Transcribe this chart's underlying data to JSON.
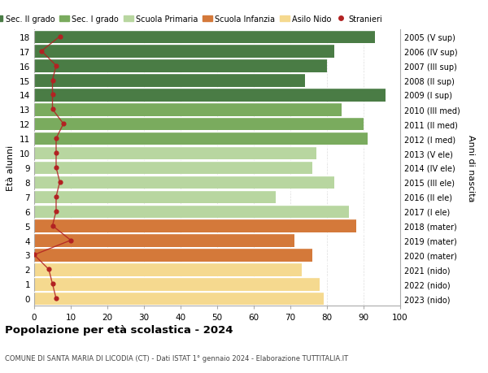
{
  "ages": [
    18,
    17,
    16,
    15,
    14,
    13,
    12,
    11,
    10,
    9,
    8,
    7,
    6,
    5,
    4,
    3,
    2,
    1,
    0
  ],
  "years": [
    "2005 (V sup)",
    "2006 (IV sup)",
    "2007 (III sup)",
    "2008 (II sup)",
    "2009 (I sup)",
    "2010 (III med)",
    "2011 (II med)",
    "2012 (I med)",
    "2013 (V ele)",
    "2014 (IV ele)",
    "2015 (III ele)",
    "2016 (II ele)",
    "2017 (I ele)",
    "2018 (mater)",
    "2019 (mater)",
    "2020 (mater)",
    "2021 (nido)",
    "2022 (nido)",
    "2023 (nido)"
  ],
  "values": [
    93,
    82,
    80,
    74,
    96,
    84,
    90,
    91,
    77,
    76,
    82,
    66,
    86,
    88,
    71,
    76,
    73,
    78,
    79
  ],
  "stranieri": [
    7,
    2,
    6,
    5,
    5,
    5,
    8,
    6,
    6,
    6,
    7,
    6,
    6,
    5,
    10,
    0,
    4,
    5,
    6
  ],
  "bar_colors": [
    "#4a7c45",
    "#4a7c45",
    "#4a7c45",
    "#4a7c45",
    "#4a7c45",
    "#7aab5e",
    "#7aab5e",
    "#7aab5e",
    "#b8d6a0",
    "#b8d6a0",
    "#b8d6a0",
    "#b8d6a0",
    "#b8d6a0",
    "#d4793a",
    "#d4793a",
    "#d4793a",
    "#f5d98f",
    "#f5d98f",
    "#f5d98f"
  ],
  "legend_labels": [
    "Sec. II grado",
    "Sec. I grado",
    "Scuola Primaria",
    "Scuola Infanzia",
    "Asilo Nido",
    "Stranieri"
  ],
  "legend_colors": [
    "#4a7c45",
    "#7aab5e",
    "#b8d6a0",
    "#d4793a",
    "#f5d98f",
    "#b22222"
  ],
  "stranieri_color": "#b22222",
  "title": "Popolazione per età scolastica - 2024",
  "subtitle": "COMUNE DI SANTA MARIA DI LICODIA (CT) - Dati ISTAT 1° gennaio 2024 - Elaborazione TUTTITALIA.IT",
  "ylabel_left": "Età alunni",
  "ylabel_right": "Anni di nascita",
  "xlim": [
    0,
    100
  ],
  "xticks": [
    0,
    10,
    20,
    30,
    40,
    50,
    60,
    70,
    80,
    90,
    100
  ],
  "grid_color": "#dddddd"
}
